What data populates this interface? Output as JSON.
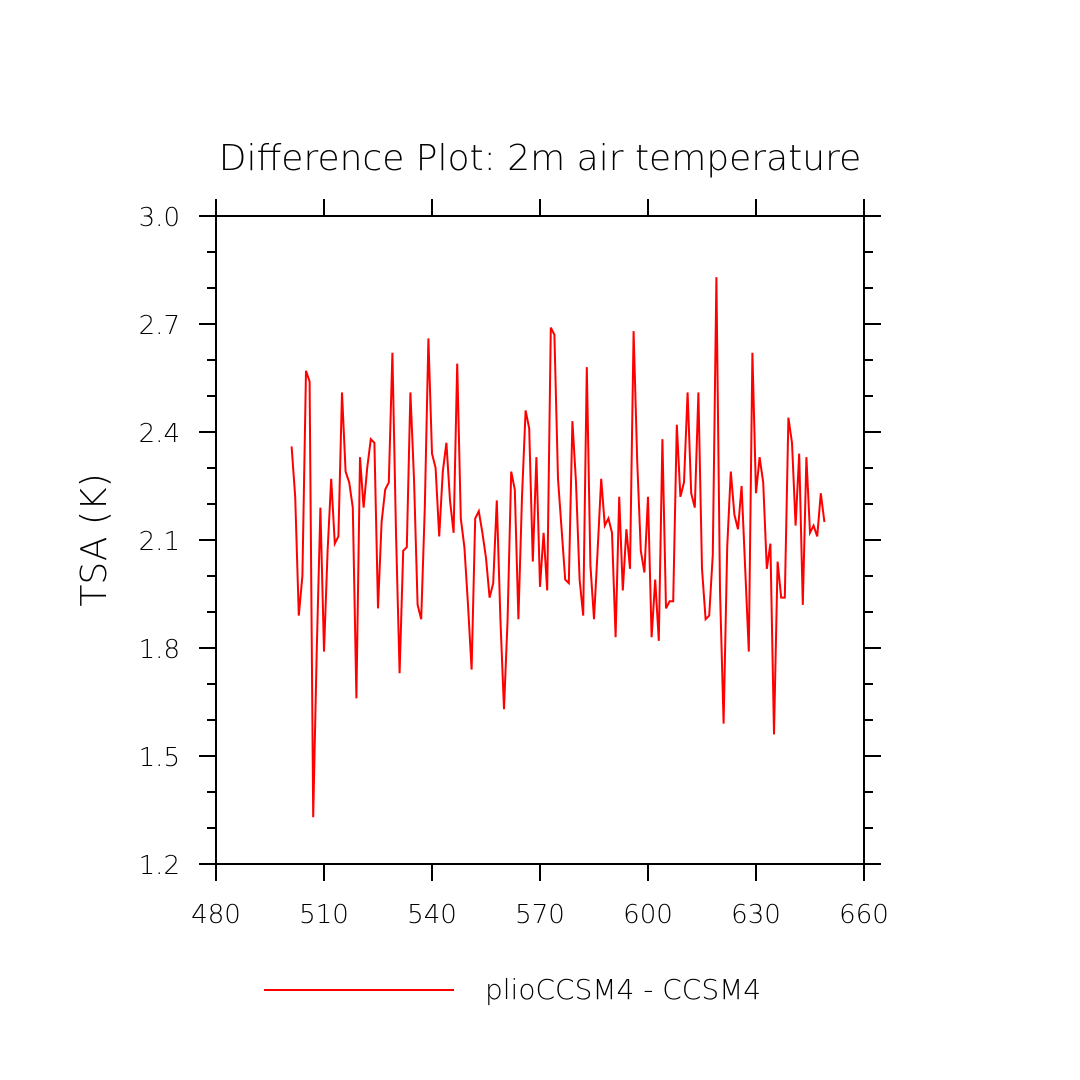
{
  "chart_data": {
    "type": "line",
    "title": "Difference Plot: 2m air temperature",
    "xlabel": "",
    "ylabel": "TSA  (K)",
    "xlim": [
      480,
      660
    ],
    "ylim": [
      1.2,
      3.0
    ],
    "x_ticks": [
      "480",
      "510",
      "540",
      "570",
      "600",
      "630",
      "660"
    ],
    "y_ticks": [
      "1.2",
      "1.5",
      "1.8",
      "2.1",
      "2.4",
      "2.7",
      "3.0"
    ],
    "grid": false,
    "legend_position": "bottom",
    "series": [
      {
        "name": "plioCCSM4 - CCSM4",
        "color": "#ff0000",
        "x_start": 501,
        "x_step": 1,
        "values": [
          2.36,
          2.22,
          1.89,
          2.0,
          2.57,
          2.54,
          1.33,
          1.8,
          2.19,
          1.79,
          2.07,
          2.27,
          2.09,
          2.11,
          2.51,
          2.29,
          2.26,
          2.19,
          1.66,
          2.33,
          2.19,
          2.3,
          2.38,
          2.37,
          1.91,
          2.15,
          2.24,
          2.26,
          2.62,
          2.12,
          1.73,
          2.07,
          2.08,
          2.51,
          2.27,
          1.92,
          1.88,
          2.19,
          2.66,
          2.34,
          2.3,
          2.11,
          2.29,
          2.37,
          2.21,
          2.12,
          2.59,
          2.16,
          2.08,
          1.92,
          1.74,
          2.16,
          2.18,
          2.12,
          2.05,
          1.94,
          1.98,
          2.21,
          1.88,
          1.63,
          1.88,
          2.29,
          2.24,
          1.88,
          2.22,
          2.46,
          2.41,
          2.04,
          2.33,
          1.97,
          2.12,
          1.96,
          2.69,
          2.67,
          2.27,
          2.13,
          1.99,
          1.98,
          2.43,
          2.26,
          1.99,
          1.89,
          2.58,
          2.03,
          1.88,
          2.07,
          2.27,
          2.14,
          2.16,
          2.12,
          1.83,
          2.22,
          1.96,
          2.13,
          2.02,
          2.68,
          2.32,
          2.07,
          2.01,
          2.22,
          1.83,
          1.99,
          1.82,
          2.38,
          1.91,
          1.93,
          1.93,
          2.42,
          2.22,
          2.26,
          2.51,
          2.23,
          2.19,
          2.51,
          2.02,
          1.88,
          1.89,
          2.06,
          2.83,
          1.96,
          1.59,
          2.08,
          2.29,
          2.17,
          2.13,
          2.25,
          2.02,
          1.79,
          2.62,
          2.23,
          2.33,
          2.26,
          2.02,
          2.09,
          1.56,
          2.04,
          1.94,
          1.94,
          2.44,
          2.37,
          2.14,
          2.34,
          1.92,
          2.33,
          2.12,
          2.14,
          2.11,
          2.23,
          2.15
        ]
      }
    ]
  }
}
